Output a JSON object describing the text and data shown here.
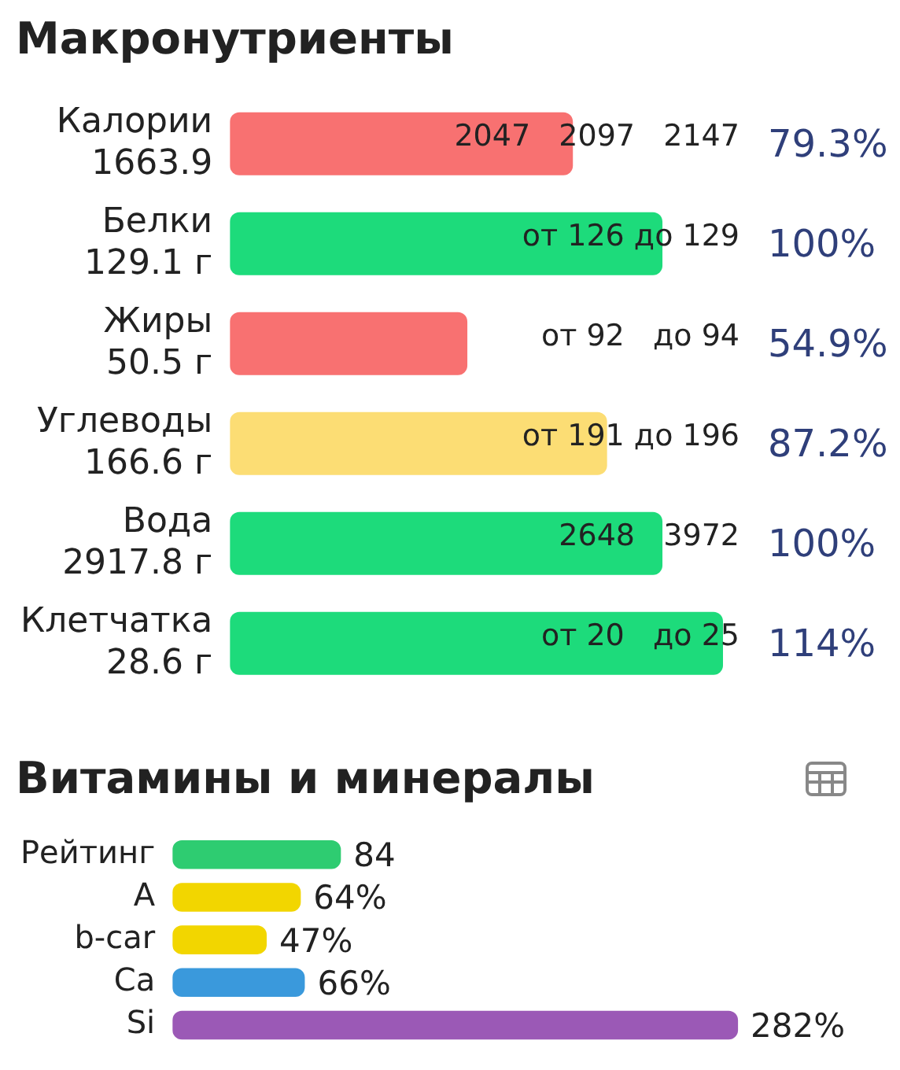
{
  "chart_data": [
    {
      "type": "bar",
      "orientation": "horizontal",
      "title": "Макронутриенты",
      "categories": [
        "Калории\n1663.9",
        "Белки\n129.1 г",
        "Жиры\n50.5 г",
        "Углеводы\n166.6 г",
        "Вода\n2917.8 г",
        "Клетчатка\n28.6 г"
      ],
      "values": [
        79.3,
        100,
        54.9,
        87.2,
        100,
        114
      ],
      "colors": [
        "#f87171",
        "#1ddb7b",
        "#f87171",
        "#fcdd74",
        "#1ddb7b",
        "#1ddb7b"
      ],
      "value_labels": [
        "79.3%",
        "100%",
        "54.9%",
        "87.2%",
        "100%",
        "114%"
      ],
      "annotations": [
        "2047   2097   2147",
        "от 126 до 129",
        "от 92   до 94",
        "от 191 до 196",
        "2648   3972",
        "от 20   до 25"
      ],
      "tick_labels": "y",
      "grid": false,
      "legend": false
    },
    {
      "type": "bar",
      "orientation": "horizontal",
      "title": "Витамины и минералы",
      "categories": [
        "Рейтинг",
        "A",
        "b-car",
        "Ca",
        "Si"
      ],
      "values": [
        84,
        64,
        47,
        66,
        282
      ],
      "colors": [
        "#2ecc71",
        "#f2d600",
        "#f2d600",
        "#3a99dc",
        "#9b59b6"
      ],
      "value_labels": [
        "84",
        "64%",
        "47%",
        "66%",
        "282%"
      ],
      "tick_labels": "y",
      "grid": false,
      "legend": false
    }
  ]
}
